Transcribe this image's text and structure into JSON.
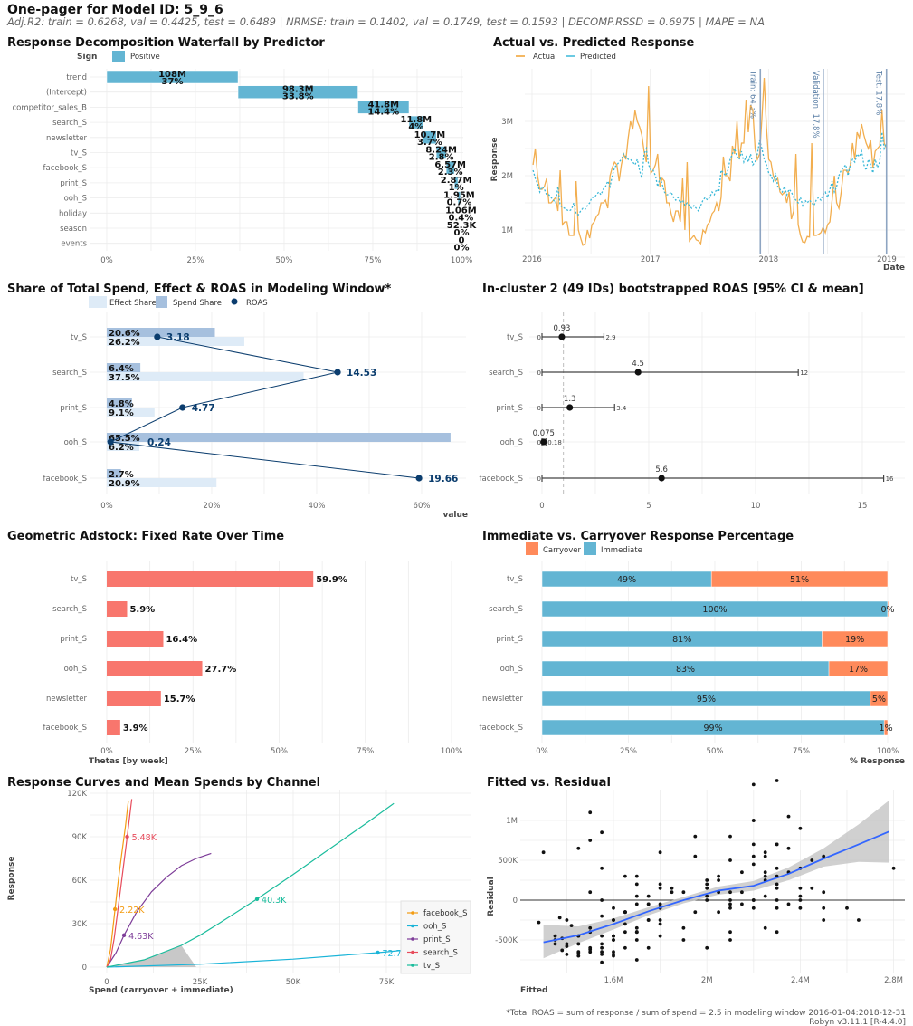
{
  "header": {
    "title": "One-pager for Model ID: 5_9_6",
    "metrics": "Adj.R2: train = 0.6268, val = 0.4425, test = 0.6489 | NRMSE: train = 0.1402, val = 0.1749, test = 0.1593 | DECOMP.RSSD = 0.6975 | MAPE = NA"
  },
  "footer": {
    "note": "*Total ROAS = sum of response / sum of spend = 2.5 in modeling window 2016-01-04:2018-12-31",
    "version": "Robyn v3.11.1 [R-4.4.0]"
  },
  "chart_data": [
    {
      "type": "bar",
      "title": "Response Decomposition Waterfall by Predictor",
      "legend_title": "Sign",
      "legend": [
        "Positive"
      ],
      "colors": {
        "Positive": "#63b5d3"
      },
      "categories": [
        "trend",
        "(Intercept)",
        "competitor_sales_B",
        "search_S",
        "newsletter",
        "tv_S",
        "facebook_S",
        "print_S",
        "ooh_S",
        "holiday",
        "season",
        "events"
      ],
      "value_labels": [
        "108M",
        "98.3M",
        "41.8M",
        "11.8M",
        "10.7M",
        "8.24M",
        "6.57M",
        "2.87M",
        "1.95M",
        "1.06M",
        "52.3K",
        "0"
      ],
      "percent_labels": [
        "37%",
        "33.8%",
        "14.4%",
        "4%",
        "3.7%",
        "2.8%",
        "2.3%",
        "1%",
        "0.7%",
        "0.4%",
        "0%",
        "0%"
      ],
      "percent": [
        37,
        33.8,
        14.4,
        4,
        3.7,
        2.8,
        2.3,
        1,
        0.7,
        0.4,
        0,
        0
      ],
      "xticks": [
        "0%",
        "25%",
        "50%",
        "75%",
        "100%"
      ],
      "xlim": [
        0,
        100
      ]
    },
    {
      "type": "line",
      "title": "Actual vs. Predicted Response",
      "xlabel": "Date",
      "ylabel": "Response",
      "frequency": "weekly",
      "start_date": "2016-01-04",
      "yticks": [
        "1M",
        "2M",
        "3M"
      ],
      "xticks": [
        "2016",
        "2017",
        "2018",
        "2019"
      ],
      "splits": [
        {
          "label": "Train: 64.3%",
          "percent": 64.3
        },
        {
          "label": "Validation: 17.8%",
          "percent": 82.1
        },
        {
          "label": "Test: 17.8%",
          "percent": 100
        }
      ],
      "series": [
        {
          "name": "Actual",
          "color": "#f0a030",
          "values": [
            2.2,
            2.5,
            2.0,
            1.75,
            1.75,
            1.8,
            1.95,
            1.5,
            1.5,
            1.55,
            1.6,
            1.35,
            2.1,
            1.1,
            1.15,
            1.15,
            0.9,
            0.9,
            0.9,
            1.9,
            1.0,
            0.85,
            0.72,
            0.75,
            1.0,
            0.85,
            1.1,
            1.15,
            1.25,
            1.3,
            1.5,
            1.5,
            1.55,
            1.4,
            2.0,
            2.15,
            2.25,
            2.2,
            1.9,
            2.2,
            2.4,
            2.3,
            2.7,
            3.0,
            2.85,
            3.2,
            3.0,
            2.9,
            2.75,
            2.45,
            2.25,
            3.65,
            2.05,
            2.1,
            2.2,
            2.4,
            1.8,
            1.95,
            1.9,
            1.5,
            1.5,
            1.3,
            1.15,
            1.35,
            1.35,
            1.15,
            1.95,
            1.0,
            2.25,
            0.8,
            0.85,
            0.9,
            0.82,
            0.8,
            0.75,
            1.0,
            0.95,
            1.1,
            1.15,
            1.3,
            1.35,
            1.5,
            1.35,
            1.6,
            2.35,
            2.0,
            2.0,
            1.9,
            2.55,
            2.4,
            3.0,
            2.3,
            2.6,
            2.6,
            3.4,
            2.8,
            3.3,
            3.2,
            2.5,
            2.3,
            2.4,
            3.05,
            3.8,
            2.9,
            2.3,
            2.25,
            2.0,
            1.9,
            1.95,
            1.7,
            1.65,
            1.7,
            1.5,
            1.7,
            1.2,
            1.35,
            2.4,
            1.1,
            0.9,
            0.78,
            0.77,
            0.88,
            0.87,
            2.6,
            0.9,
            0.9,
            0.92,
            0.95,
            1.05,
            0.95,
            1.1,
            1.15,
            1.55,
            2.0,
            1.5,
            1.4,
            1.7,
            2.1,
            2.1,
            2.05,
            2.2,
            2.6,
            2.3,
            2.8,
            2.7,
            2.95,
            2.75,
            2.6,
            2.5,
            2.65,
            2.15,
            2.45,
            2.5,
            2.55,
            3.2,
            2.6,
            2.5
          ]
        },
        {
          "name": "Predicted",
          "color": "#3ab8d8",
          "values": [
            2.1,
            1.95,
            1.85,
            1.7,
            1.8,
            1.75,
            1.65,
            1.65,
            1.6,
            1.55,
            1.5,
            1.8,
            1.45,
            1.42,
            1.4,
            1.37,
            1.35,
            1.38,
            1.5,
            1.3,
            1.28,
            1.35,
            1.4,
            1.38,
            1.45,
            1.5,
            1.6,
            1.6,
            1.65,
            1.7,
            1.65,
            1.75,
            1.8,
            1.9,
            1.8,
            2.0,
            2.15,
            2.2,
            2.25,
            2.3,
            2.4,
            2.35,
            2.3,
            2.3,
            2.25,
            2.2,
            2.3,
            2.1,
            1.95,
            2.4,
            2.5,
            2.2,
            2.1,
            2.1,
            2.0,
            1.8,
            1.95,
            1.85,
            1.7,
            1.65,
            1.65,
            1.7,
            1.6,
            1.55,
            1.6,
            1.5,
            1.55,
            1.45,
            1.5,
            1.45,
            1.4,
            1.45,
            1.4,
            1.35,
            1.45,
            1.55,
            1.6,
            1.55,
            1.6,
            1.7,
            1.65,
            1.75,
            1.7,
            2.1,
            2.05,
            2.0,
            2.1,
            2.3,
            2.4,
            2.5,
            2.35,
            2.3,
            2.45,
            2.25,
            2.35,
            2.25,
            2.4,
            2.2,
            2.25,
            2.4,
            2.65,
            2.5,
            2.3,
            2.2,
            2.05,
            2.0,
            1.9,
            2.05,
            1.8,
            1.75,
            1.7,
            1.8,
            1.65,
            1.75,
            1.7,
            1.6,
            1.55,
            1.5,
            1.6,
            1.45,
            1.55,
            1.5,
            1.55,
            1.5,
            1.45,
            1.55,
            1.6,
            1.55,
            1.65,
            1.7,
            1.6,
            1.75,
            1.9,
            1.7,
            1.8,
            2.0,
            2.1,
            2.15,
            2.2,
            2.0,
            2.2,
            2.3,
            2.25,
            2.4,
            2.35,
            2.45,
            2.2,
            2.1,
            2.3,
            2.2,
            2.05,
            2.3,
            2.15,
            2.25,
            2.8,
            2.5,
            2.6
          ]
        }
      ]
    },
    {
      "type": "bar",
      "title": "Share of Total Spend, Effect & ROAS in Modeling Window*",
      "xlabel": "value",
      "legend": [
        "Effect Share",
        "Spend Share",
        "ROAS"
      ],
      "colors": {
        "Effect Share": "#deebf7",
        "Spend Share": "#a6c0de",
        "ROAS": "#0b3d6e"
      },
      "categories": [
        "tv_S",
        "search_S",
        "print_S",
        "ooh_S",
        "facebook_S"
      ],
      "spend_share": [
        20.6,
        6.4,
        4.8,
        65.5,
        2.7
      ],
      "effect_share": [
        26.2,
        37.5,
        9.1,
        6.2,
        20.9
      ],
      "spend_labels": [
        "20.6%",
        "6.4%",
        "4.8%",
        "65.5%",
        "2.7%"
      ],
      "effect_labels": [
        "26.2%",
        "37.5%",
        "9.1%",
        "6.2%",
        "20.9%"
      ],
      "roas": [
        3.18,
        14.53,
        4.77,
        0.24,
        19.66
      ],
      "roas_labels": [
        "3.18",
        "14.53",
        "4.77",
        "0.24",
        "19.66"
      ],
      "xticks": [
        "0%",
        "20%",
        "40%",
        "60%"
      ]
    },
    {
      "type": "scatter",
      "title": "In-cluster 2 (49 IDs) bootstrapped ROAS [95% CI & mean]",
      "categories": [
        "tv_S",
        "search_S",
        "print_S",
        "ooh_S",
        "facebook_S"
      ],
      "ci_low": [
        0,
        0,
        0,
        0,
        0
      ],
      "mean": [
        0.93,
        4.5,
        1.3,
        0.075,
        5.6
      ],
      "ci_high": [
        2.9,
        12,
        3.4,
        0.18,
        16
      ],
      "low_labels": [
        "0",
        "0",
        "0",
        "0",
        "0"
      ],
      "mean_labels": [
        "0.93",
        "4.5",
        "1.3",
        "0.075",
        "5.6"
      ],
      "high_labels": [
        "2.9",
        "12",
        "3.4",
        "0.18",
        "16"
      ],
      "reference_line": 1,
      "xticks": [
        "0",
        "5",
        "10",
        "15"
      ],
      "xlim": [
        0,
        17
      ]
    },
    {
      "type": "bar",
      "title": "Geometric Adstock: Fixed Rate Over Time",
      "xlabel": "Thetas [by week]",
      "color": "#f8766d",
      "categories": [
        "tv_S",
        "search_S",
        "print_S",
        "ooh_S",
        "newsletter",
        "facebook_S"
      ],
      "values": [
        59.9,
        5.9,
        16.4,
        27.7,
        15.7,
        3.9
      ],
      "value_labels": [
        "59.9%",
        "5.9%",
        "16.4%",
        "27.7%",
        "15.7%",
        "3.9%"
      ],
      "xticks": [
        "0%",
        "25%",
        "50%",
        "75%",
        "100%"
      ],
      "xlim": [
        0,
        100
      ]
    },
    {
      "type": "bar",
      "title": "Immediate vs. Carryover Response Percentage",
      "xlabel": "% Response",
      "legend": [
        "Carryover",
        "Immediate"
      ],
      "colors": {
        "Carryover": "#ff8a5b",
        "Immediate": "#63b5d3"
      },
      "categories": [
        "tv_S",
        "search_S",
        "print_S",
        "ooh_S",
        "newsletter",
        "facebook_S"
      ],
      "immediate": [
        49,
        100,
        81,
        83,
        95,
        99
      ],
      "carryover": [
        51,
        0,
        19,
        17,
        5,
        1
      ],
      "immediate_labels": [
        "49%",
        "100%",
        "81%",
        "83%",
        "95%",
        "99%"
      ],
      "carryover_labels": [
        "51%",
        "0%",
        "19%",
        "17%",
        "5%",
        "1%"
      ],
      "xticks": [
        "0%",
        "25%",
        "50%",
        "75%",
        "100%"
      ]
    },
    {
      "type": "line",
      "title": "Response Curves and Mean Spends by Channel",
      "xlabel": "Spend (carryover + immediate)",
      "ylabel": "Response",
      "units": "K",
      "xticks": [
        "0",
        "25K",
        "50K",
        "75K"
      ],
      "yticks": [
        "0",
        "30K",
        "60K",
        "90K",
        "120K"
      ],
      "shaded_channel": "tv_S",
      "shaded_to": 24,
      "series": [
        {
          "name": "facebook_S",
          "color": "#f39c12",
          "points": [
            [
              0,
              0
            ],
            [
              1,
              12
            ],
            [
              2.22,
              40
            ],
            [
              3,
              58
            ],
            [
              4,
              78
            ],
            [
              5,
              97
            ],
            [
              5.8,
              115
            ]
          ],
          "mean_spend": 2.22,
          "mean_response": 40,
          "mean_label": "2.22K"
        },
        {
          "name": "ooh_S",
          "color": "#1ab4d8",
          "points": [
            [
              0,
              0
            ],
            [
              25,
              2
            ],
            [
              50,
              5.5
            ],
            [
              72.7,
              10
            ],
            [
              94,
              15
            ]
          ],
          "mean_spend": 72.7,
          "mean_response": 10,
          "mean_label": "72.7K"
        },
        {
          "name": "print_S",
          "color": "#7d3c98",
          "points": [
            [
              0,
              0
            ],
            [
              2.5,
              10
            ],
            [
              4.63,
              22
            ],
            [
              8,
              38
            ],
            [
              12,
              52
            ],
            [
              16,
              62
            ],
            [
              20,
              70
            ],
            [
              24,
              75
            ],
            [
              28,
              78.5
            ]
          ],
          "mean_spend": 4.63,
          "mean_response": 22,
          "mean_label": "4.63K"
        },
        {
          "name": "search_S",
          "color": "#e74c5c",
          "points": [
            [
              0,
              0
            ],
            [
              1,
              5
            ],
            [
              2,
              20
            ],
            [
              3,
              40
            ],
            [
              4,
              60
            ],
            [
              5.48,
              90
            ],
            [
              6.7,
              116
            ]
          ],
          "mean_spend": 5.48,
          "mean_response": 90,
          "mean_label": "5.48K"
        },
        {
          "name": "tv_S",
          "color": "#1abc9c",
          "points": [
            [
              0,
              0
            ],
            [
              10,
              5
            ],
            [
              20,
              15
            ],
            [
              25,
              22
            ],
            [
              30,
              30
            ],
            [
              40.3,
              47
            ],
            [
              50,
              64
            ],
            [
              60,
              82
            ],
            [
              70,
              100
            ],
            [
              77,
              113
            ]
          ],
          "mean_spend": 40.3,
          "mean_response": 47,
          "mean_label": "40.3K"
        }
      ]
    },
    {
      "type": "scatter",
      "title": "Fitted vs. Residual",
      "xlabel": "Fitted",
      "ylabel": "Residual",
      "points_from": "Actual vs. Predicted Response",
      "xticks": [
        "1.6M",
        "2M",
        "2.4M",
        "2.8M"
      ],
      "yticks": [
        "-500K",
        "0",
        "500K",
        "1M"
      ],
      "smooth": {
        "color": "#3366ff",
        "x": [
          1.3,
          1.45,
          1.6,
          1.75,
          1.9,
          2.05,
          2.2,
          2.35,
          2.5,
          2.65,
          2.78
        ],
        "fit": [
          -530,
          -440,
          -300,
          -140,
          0,
          120,
          180,
          330,
          520,
          700,
          860
        ],
        "lower": [
          -730,
          -540,
          -370,
          -190,
          -40,
          70,
          120,
          250,
          420,
          480,
          470
        ],
        "upper": [
          -310,
          -330,
          -230,
          -90,
          40,
          170,
          240,
          410,
          650,
          950,
          1250
        ]
      }
    }
  ]
}
